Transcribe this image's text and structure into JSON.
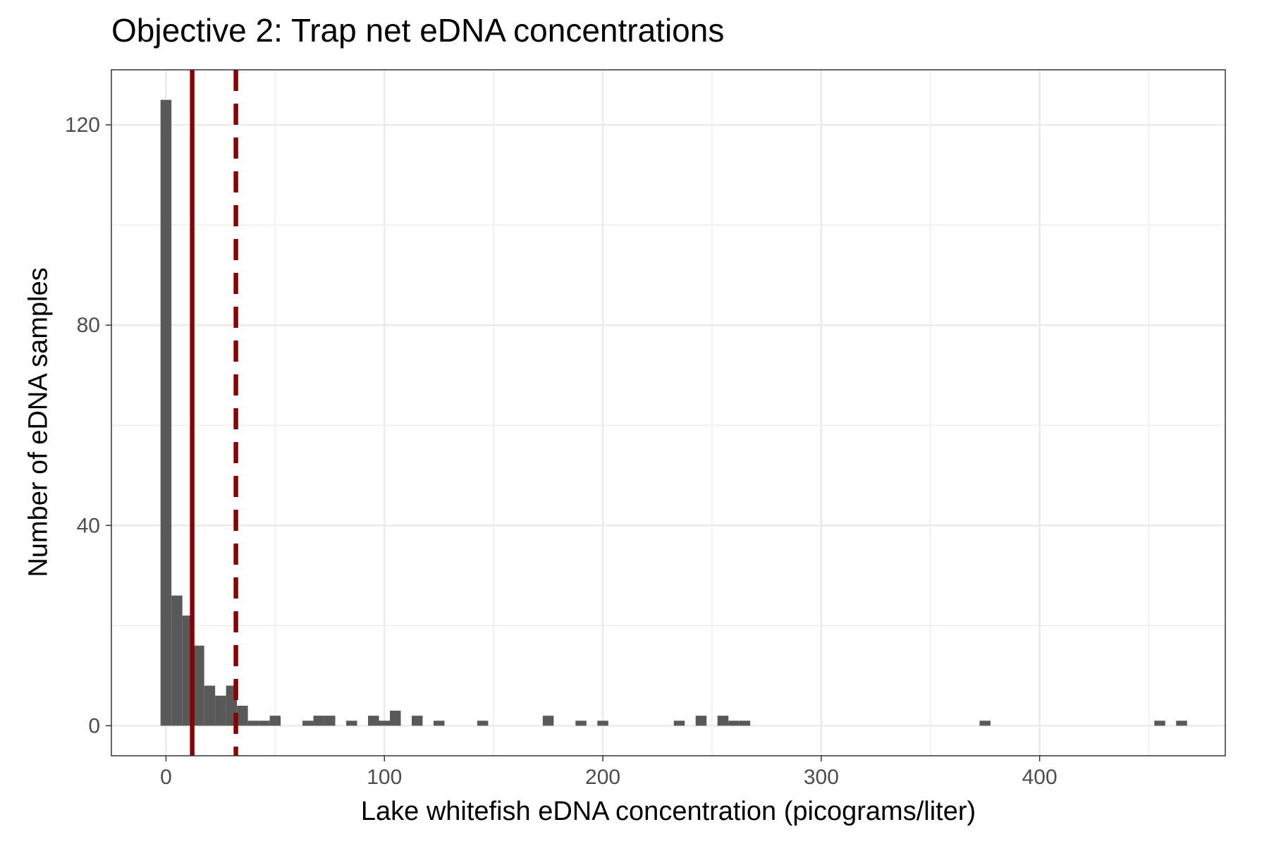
{
  "chart_data": {
    "type": "bar",
    "title": "Objective 2: Trap net eDNA concentrations",
    "xlabel": "Lake whitefish eDNA concentration (picograms/liter)",
    "ylabel": "Number of eDNA samples",
    "xlim": [
      -25,
      485
    ],
    "ylim": [
      -6,
      131
    ],
    "x_ticks": [
      0,
      100,
      200,
      300,
      400
    ],
    "y_ticks": [
      0,
      40,
      80,
      120
    ],
    "grid": true,
    "bin_width": 5,
    "bins": [
      {
        "x": 0,
        "count": 125
      },
      {
        "x": 5,
        "count": 26
      },
      {
        "x": 10,
        "count": 22
      },
      {
        "x": 15,
        "count": 16
      },
      {
        "x": 20,
        "count": 8
      },
      {
        "x": 25,
        "count": 6
      },
      {
        "x": 30,
        "count": 8
      },
      {
        "x": 35,
        "count": 4
      },
      {
        "x": 40,
        "count": 1
      },
      {
        "x": 45,
        "count": 1
      },
      {
        "x": 50,
        "count": 2
      },
      {
        "x": 65,
        "count": 1
      },
      {
        "x": 70,
        "count": 2
      },
      {
        "x": 75,
        "count": 2
      },
      {
        "x": 85,
        "count": 1
      },
      {
        "x": 95,
        "count": 2
      },
      {
        "x": 100,
        "count": 1
      },
      {
        "x": 105,
        "count": 3
      },
      {
        "x": 115,
        "count": 2
      },
      {
        "x": 125,
        "count": 1
      },
      {
        "x": 145,
        "count": 1
      },
      {
        "x": 175,
        "count": 2
      },
      {
        "x": 190,
        "count": 1
      },
      {
        "x": 200,
        "count": 1
      },
      {
        "x": 235,
        "count": 1
      },
      {
        "x": 245,
        "count": 2
      },
      {
        "x": 255,
        "count": 2
      },
      {
        "x": 260,
        "count": 1
      },
      {
        "x": 265,
        "count": 1
      },
      {
        "x": 375,
        "count": 1
      },
      {
        "x": 455,
        "count": 1
      },
      {
        "x": 465,
        "count": 1
      }
    ],
    "reference_lines": [
      {
        "x": 12,
        "style": "solid",
        "color": "#8B0000"
      },
      {
        "x": 32,
        "style": "dashed",
        "color": "#8B0000"
      }
    ],
    "colors": {
      "bar": "#595959",
      "grid": "#ebebeb",
      "panel_border": "#333333",
      "tick_label": "#4d4d4d"
    }
  }
}
